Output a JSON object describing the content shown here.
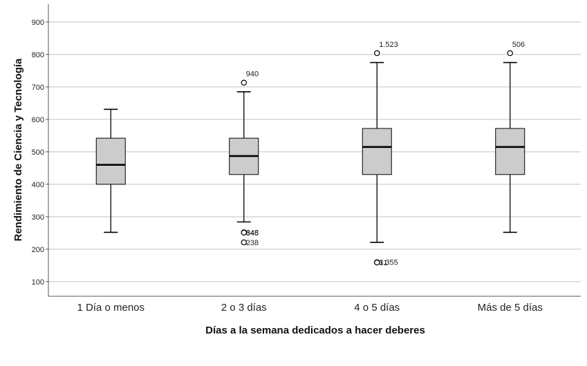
{
  "chart_data": {
    "type": "boxplot",
    "xlabel": "Días a la semana dedicados a hacer deberes",
    "ylabel": "Rendimiento de Ciencia y Tecnología",
    "ylim": [
      55,
      955
    ],
    "yticks": [
      100,
      200,
      300,
      400,
      500,
      600,
      700,
      800,
      900
    ],
    "grid": true,
    "colors": {
      "box_fill": "#cccccc",
      "stroke": "#000000",
      "grid": "#c0c0c0",
      "axis": "#555555"
    },
    "categories": [
      "1 Día o menos",
      "2 o 3 días",
      "4 o 5 días",
      "Más de 5 días"
    ],
    "boxes": [
      {
        "category": "1 Día o menos",
        "whisker_low": 252,
        "q1": 400,
        "median": 460,
        "q3": 542,
        "whisker_high": 631,
        "outliers": []
      },
      {
        "category": "2 o 3 días",
        "whisker_low": 284,
        "q1": 430,
        "median": 487,
        "q3": 542,
        "whisker_high": 685,
        "outliers": [
          {
            "value": 713,
            "label": "940"
          },
          {
            "value": 252,
            "label": "848"
          },
          {
            "value": 251,
            "label": "345"
          },
          {
            "value": 221,
            "label": "238"
          }
        ]
      },
      {
        "category": "4 o 5 días",
        "whisker_low": 221,
        "q1": 430,
        "median": 515,
        "q3": 572,
        "whisker_high": 775,
        "outliers": [
          {
            "value": 804,
            "label": "1.523"
          },
          {
            "value": 160,
            "label": "1.355"
          },
          {
            "value": 159,
            "label": "31"
          }
        ]
      },
      {
        "category": "Más de 5 días",
        "whisker_low": 252,
        "q1": 430,
        "median": 515,
        "q3": 572,
        "whisker_high": 775,
        "outliers": [
          {
            "value": 804,
            "label": "506"
          }
        ]
      }
    ]
  }
}
